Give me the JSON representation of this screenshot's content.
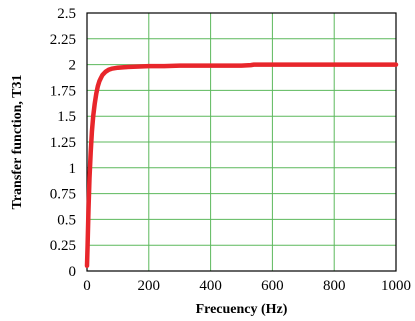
{
  "chart_data": {
    "type": "line",
    "xlabel": "Frecuency (Hz)",
    "ylabel": "Transfer function, T31",
    "xlim": [
      0,
      1000
    ],
    "ylim": [
      0,
      2.5
    ],
    "x_ticks": [
      0,
      200,
      400,
      600,
      800,
      1000
    ],
    "x_tick_labels": [
      "0",
      "200",
      "400",
      "600",
      "800",
      "1000"
    ],
    "y_ticks": [
      0,
      0.25,
      0.5,
      0.75,
      1,
      1.25,
      1.5,
      1.75,
      2,
      2.25,
      2.5
    ],
    "y_tick_labels": [
      "0",
      "0.25",
      "0.5",
      "0.75",
      "1",
      "1.25",
      "1.5",
      "1.75",
      "2",
      "2.25",
      "2.5"
    ],
    "grid": true,
    "colors": {
      "line": "#e8262b",
      "grid": "#5cb85c",
      "frame": "#000000"
    },
    "series": [
      {
        "x": [
          0,
          2,
          5,
          8,
          12,
          16,
          20,
          25,
          30,
          35,
          40,
          45,
          50,
          60,
          70,
          80,
          90,
          100,
          120,
          150,
          200,
          250,
          300,
          400,
          500,
          530,
          540,
          600,
          700,
          800,
          900,
          1000
        ],
        "y": [
          0.05,
          0.25,
          0.6,
          0.9,
          1.15,
          1.35,
          1.5,
          1.62,
          1.72,
          1.79,
          1.84,
          1.87,
          1.9,
          1.93,
          1.95,
          1.96,
          1.965,
          1.97,
          1.975,
          1.98,
          1.985,
          1.985,
          1.99,
          1.99,
          1.99,
          1.995,
          2.0,
          2.0,
          2.0,
          2.0,
          2.0,
          2.0
        ]
      }
    ]
  }
}
